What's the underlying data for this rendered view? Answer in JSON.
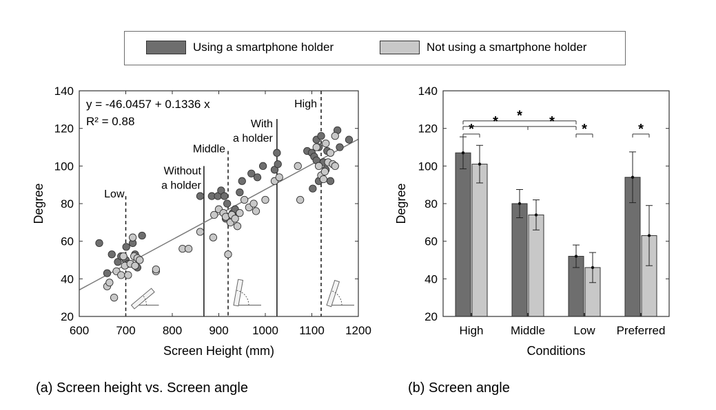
{
  "legend": {
    "items": [
      {
        "label": "Using a smartphone holder",
        "color": "#6e6e6e"
      },
      {
        "label": "Not using a smartphone holder",
        "color": "#c8c8c8"
      }
    ]
  },
  "captions": {
    "a": "(a) Screen height vs. Screen angle",
    "b": "(b) Screen angle"
  },
  "colors": {
    "dark": "#6e6e6e",
    "light": "#c8c8c8",
    "fit_line": "#7a7a7a"
  },
  "chart_data": [
    {
      "type": "scatter",
      "title": "",
      "xlabel": "Screen Height (mm)",
      "ylabel": "Degree",
      "xlim": [
        600,
        1200
      ],
      "ylim": [
        20,
        140
      ],
      "xticks": [
        600,
        700,
        800,
        900,
        1000,
        1100,
        1200
      ],
      "yticks": [
        20,
        40,
        60,
        80,
        100,
        120,
        140
      ],
      "annotations": {
        "equation": "y = -46.0457 + 0.1336 x",
        "r2": "R² = 0.88"
      },
      "regression": {
        "intercept": -46.0457,
        "slope": 0.1336
      },
      "reference_lines": [
        {
          "x": 700,
          "label_lines": [
            "Low"
          ],
          "style": "dashed",
          "top": 84
        },
        {
          "x": 868,
          "label_lines": [
            "Without",
            "a holder"
          ],
          "style": "solid",
          "top": 100
        },
        {
          "x": 920,
          "label_lines": [
            "Middle"
          ],
          "style": "dashed",
          "top": 108
        },
        {
          "x": 1025,
          "label_lines": [
            "With",
            "a holder"
          ],
          "style": "solid",
          "top": 125
        },
        {
          "x": 1120,
          "label_lines": [
            "High"
          ],
          "style": "dashed",
          "top": 140
        }
      ],
      "series": [
        {
          "name": "Using a smartphone holder",
          "color": "#6e6e6e",
          "points": [
            [
              643,
              59
            ],
            [
              660,
              43
            ],
            [
              670,
              53
            ],
            [
              683,
              49
            ],
            [
              690,
              52
            ],
            [
              700,
              50
            ],
            [
              701,
              57
            ],
            [
              705,
              48
            ],
            [
              715,
              59
            ],
            [
              720,
              53
            ],
            [
              735,
              63
            ],
            [
              725,
              46
            ],
            [
              730,
              50
            ],
            [
              860,
              84
            ],
            [
              885,
              84
            ],
            [
              898,
              84
            ],
            [
              905,
              87
            ],
            [
              912,
              84
            ],
            [
              918,
              80
            ],
            [
              915,
              72
            ],
            [
              930,
              75
            ],
            [
              935,
              77
            ],
            [
              945,
              86
            ],
            [
              950,
              92
            ],
            [
              970,
              96
            ],
            [
              983,
              94
            ],
            [
              995,
              100
            ],
            [
              1020,
              98
            ],
            [
              1025,
              107
            ],
            [
              1027,
              101
            ],
            [
              1090,
              108
            ],
            [
              1100,
              107
            ],
            [
              1105,
              105
            ],
            [
              1110,
              114
            ],
            [
              1110,
              103
            ],
            [
              1115,
              110
            ],
            [
              1120,
              116
            ],
            [
              1125,
              102
            ],
            [
              1130,
              98
            ],
            [
              1133,
              108
            ],
            [
              1140,
              92
            ],
            [
              1155,
              119
            ],
            [
              1160,
              110
            ],
            [
              1180,
              114
            ],
            [
              1115,
              92
            ],
            [
              1102,
              88
            ]
          ]
        },
        {
          "name": "Not using a smartphone holder",
          "color": "#c8c8c8",
          "points": [
            [
              660,
              36
            ],
            [
              665,
              38
            ],
            [
              675,
              30
            ],
            [
              680,
              44
            ],
            [
              690,
              42
            ],
            [
              695,
              52
            ],
            [
              698,
              47
            ],
            [
              705,
              42
            ],
            [
              710,
              48
            ],
            [
              715,
              62
            ],
            [
              718,
              52
            ],
            [
              720,
              47
            ],
            [
              725,
              51
            ],
            [
              730,
              50
            ],
            [
              765,
              44
            ],
            [
              765,
              45
            ],
            [
              822,
              56
            ],
            [
              835,
              56
            ],
            [
              860,
              65
            ],
            [
              888,
              62
            ],
            [
              890,
              74
            ],
            [
              900,
              77
            ],
            [
              910,
              75
            ],
            [
              915,
              73
            ],
            [
              920,
              53
            ],
            [
              925,
              70
            ],
            [
              928,
              74
            ],
            [
              935,
              72
            ],
            [
              940,
              68
            ],
            [
              945,
              75
            ],
            [
              955,
              82
            ],
            [
              965,
              78
            ],
            [
              975,
              80
            ],
            [
              980,
              76
            ],
            [
              1000,
              82
            ],
            [
              1020,
              92
            ],
            [
              1030,
              94
            ],
            [
              1070,
              100
            ],
            [
              1075,
              82
            ],
            [
              1110,
              110
            ],
            [
              1115,
              100
            ],
            [
              1120,
              95
            ],
            [
              1125,
              93
            ],
            [
              1130,
              112
            ],
            [
              1135,
              102
            ],
            [
              1140,
              107
            ],
            [
              1145,
              101
            ],
            [
              1150,
              100
            ],
            [
              1150,
              116
            ],
            [
              1128,
              97
            ]
          ]
        }
      ]
    },
    {
      "type": "bar",
      "title": "",
      "xlabel": "Conditions",
      "ylabel": "Degree",
      "ylim": [
        20,
        140
      ],
      "yticks": [
        20,
        40,
        60,
        80,
        100,
        120,
        140
      ],
      "categories": [
        "High",
        "Middle",
        "Low",
        "Preferred"
      ],
      "series": [
        {
          "name": "Using a smartphone holder",
          "color": "#6e6e6e",
          "values": [
            107,
            80,
            52,
            94
          ],
          "errors": [
            8.5,
            7.5,
            6,
            13.5
          ]
        },
        {
          "name": "Not using a smartphone holder",
          "color": "#c8c8c8",
          "values": [
            101,
            74,
            46,
            63
          ],
          "errors": [
            10,
            8,
            8,
            16
          ]
        }
      ],
      "significance": [
        {
          "from_cat": 0,
          "to_cat": 2,
          "from_series": 0,
          "to_series": 0,
          "y": 124,
          "label": "*"
        },
        {
          "from_cat": 0,
          "to_cat": 2,
          "from_series": 0,
          "to_series": 0,
          "y": 121,
          "mid_cat": 1,
          "label_left": "*",
          "label_right": "*"
        },
        {
          "from_cat": 0,
          "to_cat": 0,
          "from_series": 0,
          "to_series": 1,
          "y": 117,
          "label": "*"
        },
        {
          "from_cat": 2,
          "to_cat": 2,
          "from_series": 0,
          "to_series": 1,
          "y": 117,
          "label": "*"
        },
        {
          "from_cat": 3,
          "to_cat": 3,
          "from_series": 0,
          "to_series": 1,
          "y": 117,
          "label": "*"
        }
      ]
    }
  ]
}
